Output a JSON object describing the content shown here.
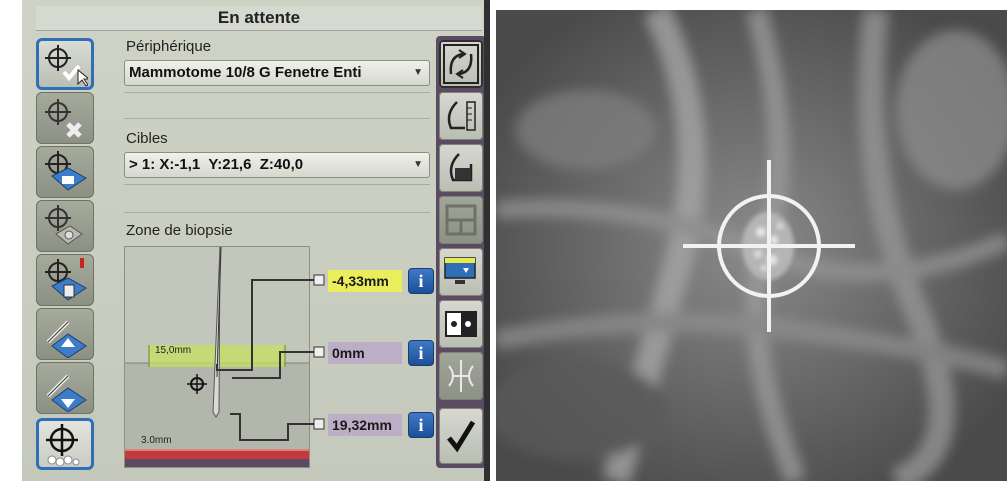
{
  "status": {
    "title": "En attente"
  },
  "device": {
    "label": "Périphérique",
    "value": "Mammotome 10/8 G Fenetre Enti"
  },
  "targets": {
    "label": "Cibles",
    "value": "> 1: X:-1,1  Y:21,6  Z:40,0"
  },
  "zone": {
    "label": "Zone de biopsie",
    "window_label": "15,0mm",
    "base_label": "3.0mm",
    "measurements": [
      {
        "value": "-4,33mm",
        "highlight": "#e9ee5a"
      },
      {
        "value": "0mm",
        "highlight": "#bdaec8"
      },
      {
        "value": "19,32mm",
        "highlight": "#bdaec8"
      }
    ],
    "info_icon": "i"
  },
  "left_tools": [
    "target-accept-icon",
    "target-delete-icon",
    "target-send-icon",
    "target-group-icon",
    "target-trash-icon",
    "needle-up-icon",
    "needle-down-icon",
    "target-calcification-icon"
  ],
  "right_tools": [
    "rotate-view-icon",
    "breast-scale-icon",
    "breast-select-icon",
    "layout-grid-icon",
    "monitor-icon",
    "contrast-icon",
    "mirror-icon",
    "checkmark-icon"
  ],
  "colors": {
    "accent": "#2f6fb7",
    "window_green": "#c6e060",
    "strip_purple": "#5a4a62"
  }
}
